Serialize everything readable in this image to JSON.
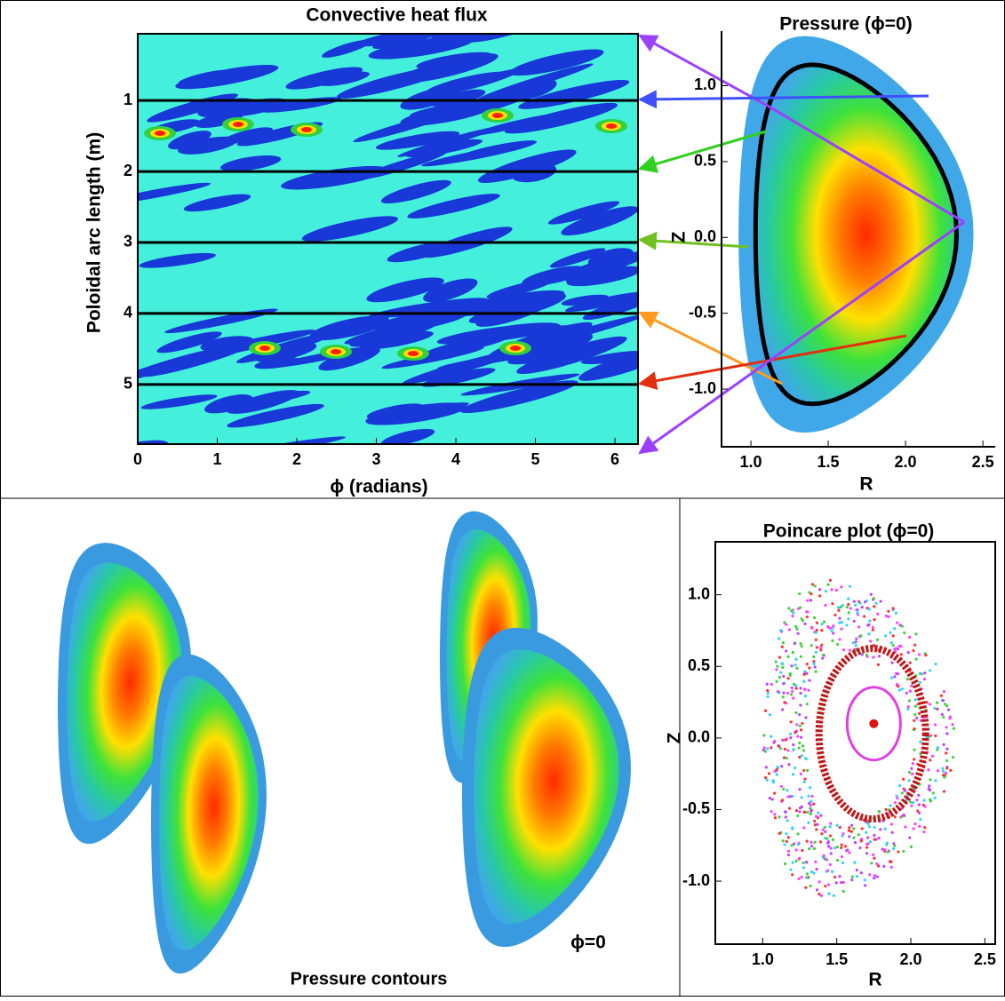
{
  "heat_flux": {
    "title": "Convective heat flux",
    "xlabel": "ϕ (radians)",
    "ylabel": "Poloidal arc length (m)",
    "xlim": [
      0,
      6.29
    ],
    "ylim": [
      5.84,
      0.06
    ],
    "xticks": [
      0,
      1,
      2,
      3,
      4,
      5,
      6
    ],
    "yticks": [
      1,
      2,
      3,
      4,
      5
    ]
  },
  "pressure": {
    "title": "Pressure (ϕ=0)",
    "xlabel": "R",
    "ylabel": "Z",
    "xlim": [
      0.81,
      2.58
    ],
    "ylim": [
      -1.38,
      1.36
    ],
    "xticks": [
      {
        "value": 1,
        "label": "1.0"
      },
      {
        "value": 1.5,
        "label": "1.5"
      },
      {
        "value": 2,
        "label": "2.0"
      },
      {
        "value": 2.5,
        "label": "2.5"
      }
    ],
    "yticks": [
      {
        "value": 1,
        "label": "1.0"
      },
      {
        "value": 0.5,
        "label": "0.5"
      },
      {
        "value": 0,
        "label": "0.0"
      },
      {
        "value": -0.5,
        "label": "-0.5"
      },
      {
        "value": -1,
        "label": "-1.0"
      }
    ]
  },
  "poincare": {
    "title": "Poincare plot (ϕ=0)",
    "xlabel": "R",
    "ylabel": "Z",
    "xlim": [
      0.68,
      2.57
    ],
    "ylim": [
      -1.44,
      1.37
    ],
    "xticks": [
      {
        "value": 1,
        "label": "1.0"
      },
      {
        "value": 1.5,
        "label": "1.5"
      },
      {
        "value": 2,
        "label": "2.0"
      },
      {
        "value": 2.5,
        "label": "2.5"
      }
    ],
    "yticks": [
      {
        "value": 1,
        "label": "1.0"
      },
      {
        "value": 0.5,
        "label": "0.5"
      },
      {
        "value": 0,
        "label": "0.0"
      },
      {
        "value": -0.5,
        "label": "-0.5"
      },
      {
        "value": -1,
        "label": "-1.0"
      }
    ]
  },
  "contours": {
    "caption": "Pressure contours",
    "phi_label": "ϕ=0"
  }
}
